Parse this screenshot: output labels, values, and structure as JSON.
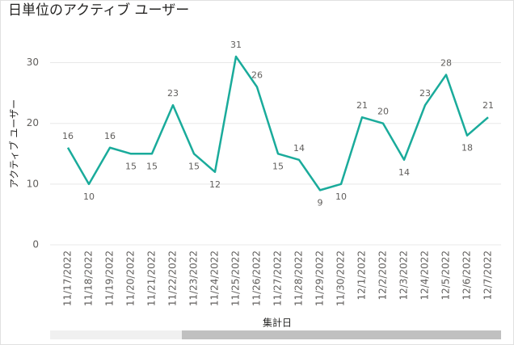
{
  "chart_data": {
    "type": "line",
    "title": "日単位のアクティブ ユーザー",
    "x_label": "集計日",
    "y_label": "アクティブ ユーザー",
    "categories": [
      "11/17/2022",
      "11/18/2022",
      "11/19/2022",
      "11/20/2022",
      "11/21/2022",
      "11/22/2022",
      "11/23/2022",
      "11/24/2022",
      "11/25/2022",
      "11/26/2022",
      "11/27/2022",
      "11/28/2022",
      "11/29/2022",
      "11/30/2022",
      "12/1/2022",
      "12/2/2022",
      "12/3/2022",
      "12/4/2022",
      "12/5/2022",
      "12/6/2022",
      "12/7/2022"
    ],
    "series": [
      {
        "name": "アクティブ ユーザー",
        "color": "#1aab9b",
        "values": [
          16,
          10,
          16,
          15,
          15,
          23,
          15,
          12,
          31,
          26,
          15,
          14,
          9,
          10,
          21,
          20,
          14,
          23,
          28,
          18,
          21
        ]
      }
    ],
    "ylim": [
      0,
      33
    ],
    "yticks": [
      0,
      10,
      20,
      30
    ],
    "grid": true
  }
}
